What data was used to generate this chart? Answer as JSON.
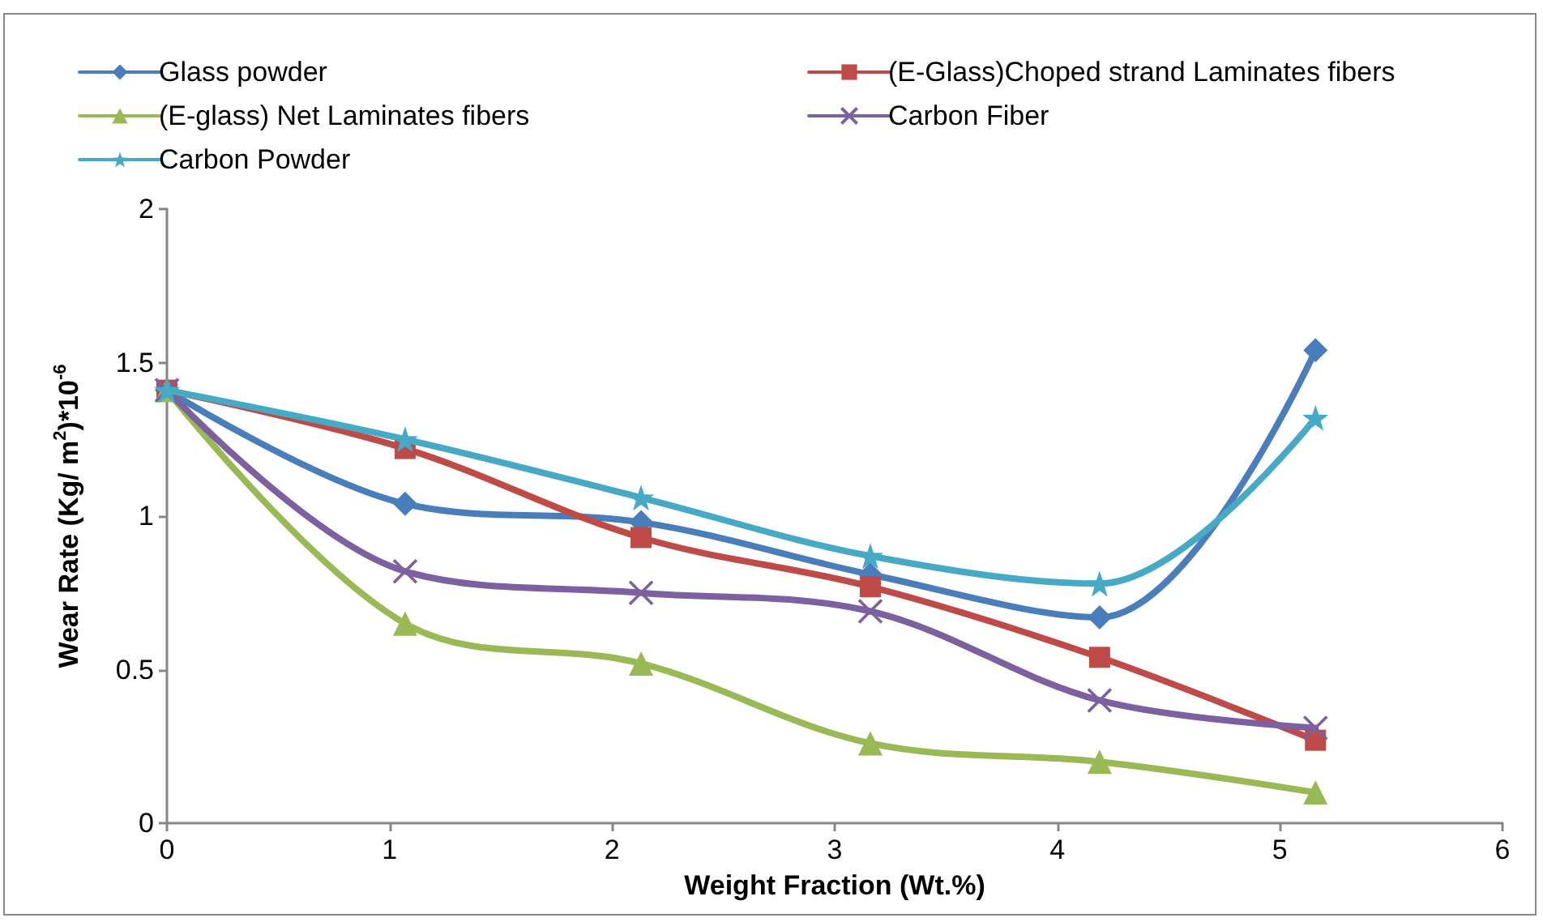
{
  "chart_data": {
    "type": "line",
    "xlabel": "Weight Fraction (Wt.%)",
    "ylabel": "Wear Rate (Kg/ m$^{2}$)*10$^{-6}$",
    "xlim": [
      0,
      6
    ],
    "xticks": [
      0,
      1,
      2,
      3,
      4,
      5,
      6
    ],
    "ylim": [
      0,
      2
    ],
    "yticks": [
      0,
      0.5,
      1,
      1.5,
      2
    ],
    "grid": false,
    "legend": "top",
    "line_style": "solid",
    "x": [
      0,
      1.07,
      2.13,
      3.16,
      4.19,
      5.16
    ],
    "series": [
      {
        "name": "Glass powder",
        "color": "#4a7ebb",
        "marker": "diamond",
        "values": [
          1.41,
          1.04,
          0.98,
          0.81,
          0.67,
          1.54
        ]
      },
      {
        "name": "(E-Glass)Choped strand Laminates fibers",
        "color": "#be4b48",
        "marker": "square",
        "values": [
          1.41,
          1.22,
          0.93,
          0.77,
          0.54,
          0.27
        ]
      },
      {
        "name": "(E-glass) Net Laminates fibers",
        "color": "#98b954",
        "marker": "triangle",
        "values": [
          1.41,
          0.65,
          0.52,
          0.26,
          0.2,
          0.1
        ]
      },
      {
        "name": "Carbon Fiber",
        "color": "#7d60a0",
        "marker": "cross",
        "values": [
          1.41,
          0.82,
          0.75,
          0.69,
          0.4,
          0.31
        ]
      },
      {
        "name": "Carbon Powder",
        "color": "#46aac5",
        "marker": "star",
        "values": [
          1.41,
          1.25,
          1.06,
          0.87,
          0.78,
          1.32
        ]
      }
    ]
  }
}
